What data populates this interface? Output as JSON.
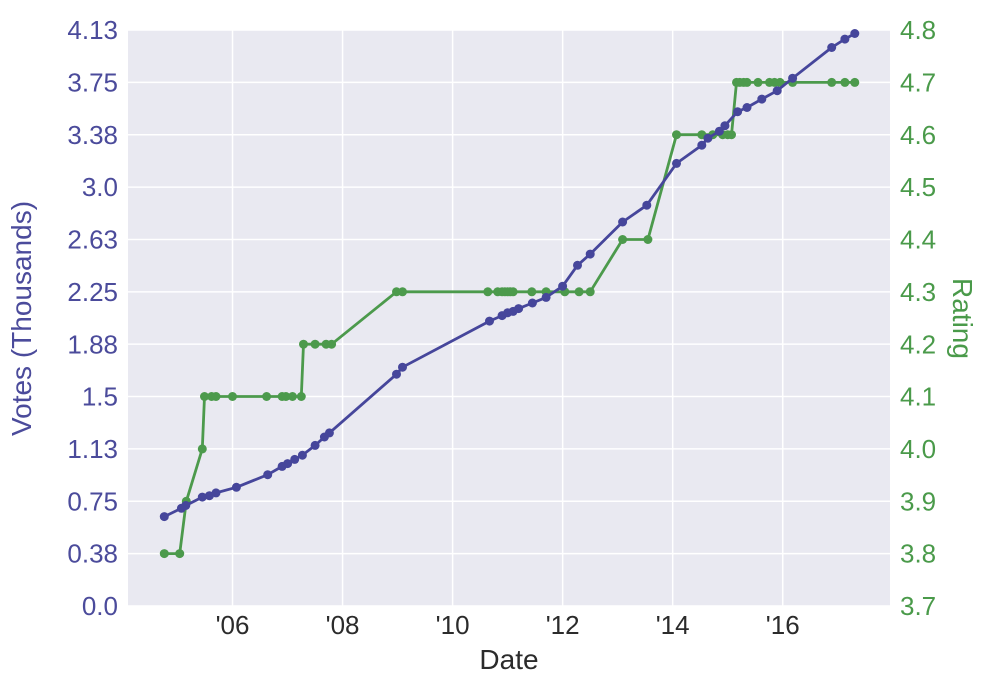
{
  "figure": {
    "background": "#ffffff",
    "plot_background": "#e9e9f1",
    "grid_color": "#ffffff"
  },
  "chart_data": {
    "type": "line",
    "title": "",
    "xlabel": "Date",
    "grid": "on",
    "legend": "none",
    "xlim": [
      2004.1,
      2017.95
    ],
    "x_ticks": {
      "values": [
        2006,
        2008,
        2010,
        2012,
        2014,
        2016
      ],
      "labels": [
        "'06",
        "'08",
        "'10",
        "'12",
        "'14",
        "'16"
      ]
    },
    "left_axis": {
      "label": "Votes (Thousands)",
      "color": "#4b4b9b",
      "lim": [
        0,
        4.125
      ],
      "tick_values": [
        0,
        0.375,
        0.75,
        1.125,
        1.5,
        1.875,
        2.25,
        2.625,
        3.0,
        3.375,
        3.75,
        4.125
      ],
      "tick_labels": [
        "0.0",
        "0.38",
        "0.75",
        "1.13",
        "1.5",
        "1.88",
        "2.25",
        "2.63",
        "3.0",
        "3.38",
        "3.75",
        "4.13"
      ]
    },
    "right_axis": {
      "label": "Rating",
      "color": "#4a9a4a",
      "lim": [
        3.7,
        4.8
      ],
      "tick_values": [
        3.7,
        3.8,
        3.9,
        4.0,
        4.1,
        4.2,
        4.3,
        4.4,
        4.5,
        4.6,
        4.7,
        4.8
      ],
      "tick_labels": [
        "3.7",
        "3.8",
        "3.9",
        "4.0",
        "4.1",
        "4.2",
        "4.3",
        "4.4",
        "4.5",
        "4.6",
        "4.7",
        "4.8"
      ]
    },
    "series": [
      {
        "name": "rating",
        "axis": "right",
        "color": "#4c9a4c",
        "points": [
          [
            2004.76,
            3.8
          ],
          [
            2005.04,
            3.8
          ],
          [
            2005.16,
            3.9
          ],
          [
            2005.45,
            4.0
          ],
          [
            2005.49,
            4.1
          ],
          [
            2005.62,
            4.1
          ],
          [
            2005.7,
            4.1
          ],
          [
            2006.0,
            4.1
          ],
          [
            2006.62,
            4.1
          ],
          [
            2006.9,
            4.1
          ],
          [
            2006.97,
            4.1
          ],
          [
            2007.09,
            4.1
          ],
          [
            2007.25,
            4.1
          ],
          [
            2007.29,
            4.2
          ],
          [
            2007.5,
            4.2
          ],
          [
            2007.7,
            4.2
          ],
          [
            2007.8,
            4.2
          ],
          [
            2008.98,
            4.3
          ],
          [
            2009.09,
            4.3
          ],
          [
            2010.64,
            4.3
          ],
          [
            2010.82,
            4.3
          ],
          [
            2010.9,
            4.3
          ],
          [
            2010.95,
            4.3
          ],
          [
            2011.0,
            4.3
          ],
          [
            2011.05,
            4.3
          ],
          [
            2011.1,
            4.3
          ],
          [
            2011.44,
            4.3
          ],
          [
            2011.7,
            4.3
          ],
          [
            2012.04,
            4.3
          ],
          [
            2012.3,
            4.3
          ],
          [
            2012.5,
            4.3
          ],
          [
            2013.09,
            4.4
          ],
          [
            2013.55,
            4.4
          ],
          [
            2014.07,
            4.6
          ],
          [
            2014.53,
            4.6
          ],
          [
            2014.73,
            4.6
          ],
          [
            2014.91,
            4.6
          ],
          [
            2015.0,
            4.6
          ],
          [
            2015.07,
            4.6
          ],
          [
            2015.16,
            4.7
          ],
          [
            2015.22,
            4.7
          ],
          [
            2015.29,
            4.7
          ],
          [
            2015.35,
            4.7
          ],
          [
            2015.55,
            4.7
          ],
          [
            2015.76,
            4.7
          ],
          [
            2015.85,
            4.7
          ],
          [
            2015.95,
            4.7
          ],
          [
            2016.18,
            4.7
          ],
          [
            2016.89,
            4.7
          ],
          [
            2017.13,
            4.7
          ],
          [
            2017.31,
            4.7
          ]
        ]
      },
      {
        "name": "votes_thousands",
        "axis": "left",
        "color": "#46469b",
        "points": [
          [
            2004.76,
            0.64
          ],
          [
            2005.07,
            0.7
          ],
          [
            2005.15,
            0.72
          ],
          [
            2005.45,
            0.78
          ],
          [
            2005.58,
            0.79
          ],
          [
            2005.7,
            0.81
          ],
          [
            2006.07,
            0.85
          ],
          [
            2006.64,
            0.94
          ],
          [
            2006.9,
            1.0
          ],
          [
            2007.0,
            1.02
          ],
          [
            2007.13,
            1.05
          ],
          [
            2007.27,
            1.08
          ],
          [
            2007.5,
            1.15
          ],
          [
            2007.67,
            1.21
          ],
          [
            2007.76,
            1.24
          ],
          [
            2008.98,
            1.66
          ],
          [
            2009.09,
            1.71
          ],
          [
            2010.67,
            2.04
          ],
          [
            2010.9,
            2.08
          ],
          [
            2011.0,
            2.1
          ],
          [
            2011.1,
            2.11
          ],
          [
            2011.2,
            2.13
          ],
          [
            2011.45,
            2.17
          ],
          [
            2011.7,
            2.21
          ],
          [
            2012.0,
            2.29
          ],
          [
            2012.27,
            2.44
          ],
          [
            2012.5,
            2.52
          ],
          [
            2013.09,
            2.75
          ],
          [
            2013.53,
            2.87
          ],
          [
            2014.07,
            3.17
          ],
          [
            2014.53,
            3.3
          ],
          [
            2014.64,
            3.35
          ],
          [
            2014.85,
            3.4
          ],
          [
            2014.95,
            3.44
          ],
          [
            2015.18,
            3.54
          ],
          [
            2015.35,
            3.57
          ],
          [
            2015.62,
            3.63
          ],
          [
            2015.9,
            3.69
          ],
          [
            2016.18,
            3.78
          ],
          [
            2016.89,
            4.0
          ],
          [
            2017.13,
            4.06
          ],
          [
            2017.31,
            4.1
          ]
        ]
      }
    ]
  }
}
